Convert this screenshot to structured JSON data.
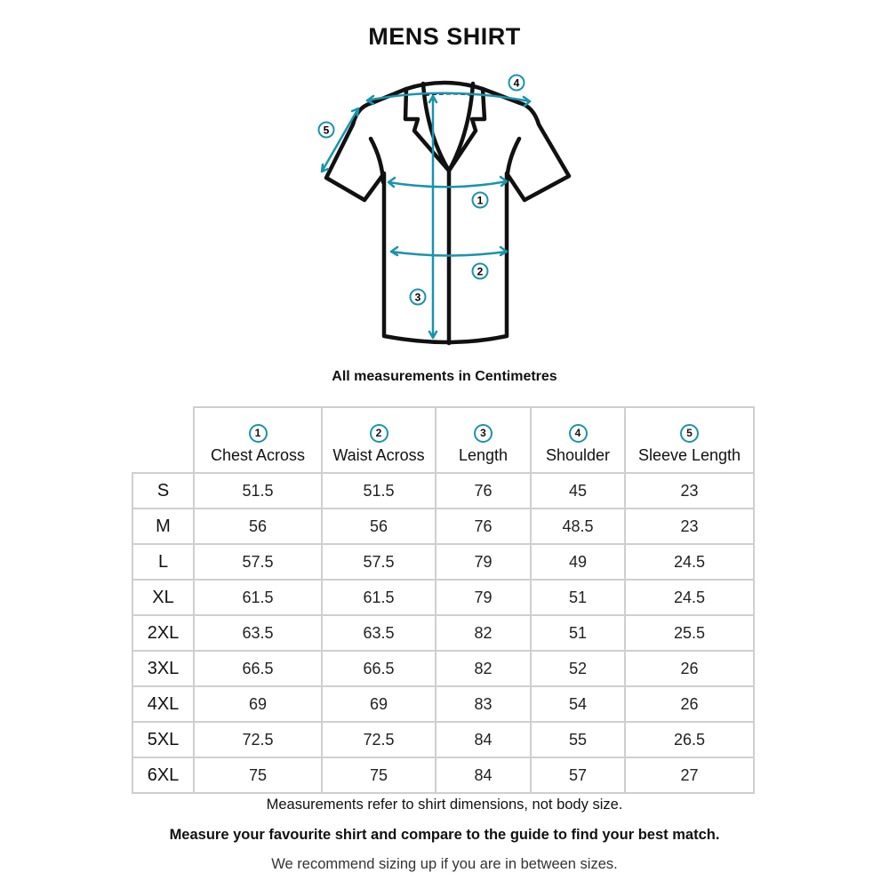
{
  "title": "MENS SHIRT",
  "diagram": {
    "labels": [
      "1",
      "2",
      "3",
      "4",
      "5"
    ],
    "accent_color": "#1a93ad",
    "outline_color": "#111111"
  },
  "units_note": "All measurements in Centimetres",
  "table": {
    "columns": [
      {
        "num": "1",
        "label": "Chest Across"
      },
      {
        "num": "2",
        "label": "Waist Across"
      },
      {
        "num": "3",
        "label": "Length"
      },
      {
        "num": "4",
        "label": "Shoulder"
      },
      {
        "num": "5",
        "label": "Sleeve Length"
      }
    ],
    "rows": [
      {
        "size": "S",
        "values": [
          "51.5",
          "51.5",
          "76",
          "45",
          "23"
        ]
      },
      {
        "size": "M",
        "values": [
          "56",
          "56",
          "76",
          "48.5",
          "23"
        ]
      },
      {
        "size": "L",
        "values": [
          "57.5",
          "57.5",
          "79",
          "49",
          "24.5"
        ]
      },
      {
        "size": "XL",
        "values": [
          "61.5",
          "61.5",
          "79",
          "51",
          "24.5"
        ]
      },
      {
        "size": "2XL",
        "values": [
          "63.5",
          "63.5",
          "82",
          "51",
          "25.5"
        ]
      },
      {
        "size": "3XL",
        "values": [
          "66.5",
          "66.5",
          "82",
          "52",
          "26"
        ]
      },
      {
        "size": "4XL",
        "values": [
          "69",
          "69",
          "83",
          "54",
          "26"
        ]
      },
      {
        "size": "5XL",
        "values": [
          "72.5",
          "72.5",
          "84",
          "55",
          "26.5"
        ]
      },
      {
        "size": "6XL",
        "values": [
          "75",
          "75",
          "84",
          "57",
          "27"
        ]
      }
    ]
  },
  "notes": [
    "Measurements refer to shirt dimensions, not body size.",
    "Measure your favourite shirt and compare to the guide to find your best match.",
    "We recommend sizing up if you are in between sizes."
  ]
}
